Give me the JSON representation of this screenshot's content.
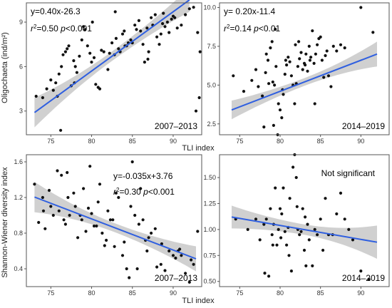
{
  "figure": {
    "ylabel_top": "Oligochaeta (ind/m²)",
    "ylabel_bottom": "Shannon-Wiener diversity index",
    "xlabel_top": "TLI index",
    "xlabel_bottom": "TLI index"
  },
  "colors": {
    "points": "#111111",
    "fit": "#2f5fe0",
    "band": "#c8c8c8",
    "frame": "#555555"
  },
  "chart_data": [
    {
      "type": "scatter",
      "panel": "top-left",
      "period": "2007–2013",
      "annotation_eq": "y=0.40x-26.3",
      "annotation_r2": "r²=0.50 p<0.001",
      "xlim": [
        72,
        93.5
      ],
      "ylim": [
        1.4,
        10.3
      ],
      "xticks": [
        75,
        80,
        85,
        90
      ],
      "yticks": [
        3,
        6,
        9
      ],
      "fit": {
        "slope": 0.4,
        "intercept": -26.3,
        "x_range": [
          73,
          92
        ],
        "band": [
          1.0,
          0.32,
          0.8
        ]
      },
      "x": [
        73.2,
        74,
        74.5,
        75,
        75.3,
        75.8,
        75.6,
        76,
        76.3,
        76.5,
        76.8,
        77,
        77.2,
        77.5,
        77.8,
        78,
        78.2,
        78.5,
        78.8,
        79,
        79.2,
        79.5,
        79.8,
        80,
        80.3,
        80.5,
        80.8,
        81,
        81.2,
        81.5,
        82,
        82.2,
        82.5,
        82.8,
        83,
        83.3,
        83.5,
        83.8,
        84,
        84.3,
        84.5,
        84.8,
        85,
        85.3,
        85.5,
        85.8,
        86,
        86.3,
        86.5,
        86.8,
        87,
        87.3,
        87.5,
        87.8,
        88,
        88.3,
        88.5,
        88.8,
        89,
        89.3,
        89.5,
        89.8,
        90,
        90.5,
        91,
        91.5,
        92,
        92.5,
        93,
        93.3,
        76.2,
        77.9,
        80.1,
        82.9,
        84.1,
        86.9,
        88.7,
        90.2,
        92.8,
        93.2
      ],
      "y": [
        4.0,
        3.9,
        4.5,
        5.1,
        4.4,
        4.0,
        4.9,
        5.5,
        6.0,
        6.8,
        7.0,
        7.2,
        7.4,
        4.7,
        6.4,
        6.0,
        5.6,
        6.7,
        7.8,
        8.7,
        8.5,
        7.4,
        6.9,
        6.3,
        6.6,
        4.8,
        4.6,
        4.5,
        7.1,
        7.0,
        5.8,
        6.9,
        7.6,
        6.8,
        7.9,
        7.2,
        7.0,
        8.2,
        8.4,
        7.4,
        7.6,
        7.8,
        7.6,
        8.8,
        8.5,
        9.1,
        8.4,
        7.5,
        6.3,
        8.6,
        7.0,
        9.3,
        8.8,
        9.5,
        8.0,
        7.5,
        8.2,
        9.6,
        8.7,
        9.0,
        8.3,
        9.2,
        9.4,
        8.6,
        8.8,
        9.5,
        9.9,
        10.0,
        8.3,
        7.0,
        1.7,
        4.9,
        9.0,
        9.7,
        7.4,
        6.5,
        8.9,
        9.3,
        3.0,
        3.9
      ]
    },
    {
      "type": "scatter",
      "panel": "top-right",
      "period": "2014–2019",
      "annotation_eq": "y= 0.20x-11.4",
      "annotation_r2": "r²=0.14 p<0.01",
      "xlim": [
        72.5,
        93.5
      ],
      "ylim": [
        1.8,
        10.3
      ],
      "xticks": [
        75,
        80,
        85,
        90
      ],
      "yticks": [
        2.5,
        5.0,
        7.5,
        10.0
      ],
      "fit": {
        "slope": 0.2,
        "intercept": -11.4,
        "x_range": [
          74,
          92
        ],
        "band": [
          0.6,
          0.25,
          0.8
        ]
      },
      "x": [
        74.2,
        75.5,
        76.5,
        77,
        77.3,
        77.8,
        78,
        78.2,
        78.5,
        78.8,
        79,
        79.1,
        79.3,
        79.5,
        79.7,
        79.8,
        80,
        80.2,
        80.4,
        80.6,
        80.8,
        81,
        81.2,
        81.4,
        81.6,
        81.8,
        82,
        82.2,
        82.4,
        82.6,
        82.8,
        83,
        83.2,
        83.4,
        83.6,
        83.8,
        84,
        84.2,
        84.4,
        84.6,
        84.8,
        85,
        85.2,
        85.4,
        85.6,
        85.8,
        86,
        86.3,
        86.6,
        87,
        87.5,
        88,
        90,
        91.5,
        78.3,
        79.4,
        80.7,
        81.9,
        83.1,
        84.3,
        79.2,
        78.6,
        80.3,
        82.3,
        83.7
      ],
      "y": [
        5.6,
        4.6,
        5.3,
        6.0,
        4.9,
        4.3,
        2.3,
        5.8,
        6.6,
        7.4,
        7.8,
        5.2,
        5.0,
        6.2,
        1.8,
        3.8,
        3.4,
        2.9,
        4.4,
        5.7,
        6.3,
        6.8,
        6.5,
        5.6,
        5.0,
        3.8,
        5.1,
        6.2,
        6.7,
        7.1,
        6.0,
        6.4,
        7.0,
        5.9,
        7.5,
        6.8,
        8.5,
        6.4,
        7.0,
        7.6,
        8.0,
        8.1,
        6.6,
        5.5,
        6.9,
        7.2,
        5.6,
        4.9,
        7.5,
        7.2,
        7.6,
        7.4,
        10.0,
        8.4,
        7.0,
        8.6,
        6.6,
        7.6,
        6.3,
        3.8,
        2.4,
        5.1,
        4.7,
        7.8,
        6.6
      ]
    },
    {
      "type": "scatter",
      "panel": "bottom-left",
      "period": "2007–2013",
      "annotation_eq": "y=-0.035x+3.76",
      "annotation_r2": "r²=0.30 p<0.001",
      "xlim": [
        72,
        93.5
      ],
      "ylim": [
        0.2,
        1.68
      ],
      "xticks": [
        75,
        80,
        85,
        90
      ],
      "yticks": [
        0.4,
        0.8,
        1.2,
        1.6
      ],
      "fit": {
        "slope": -0.035,
        "intercept": 3.76,
        "x_range": [
          73,
          92.8
        ],
        "band": [
          0.17,
          0.05,
          0.14
        ]
      },
      "x": [
        73,
        73.5,
        74,
        74.3,
        74.8,
        75,
        75.3,
        75.8,
        76,
        76.3,
        76.8,
        77,
        77.3,
        77.8,
        78,
        78.3,
        78.8,
        79,
        79.3,
        79.8,
        80,
        80.3,
        80.8,
        81,
        81.3,
        81.8,
        82,
        82.3,
        82.8,
        83,
        83.3,
        83.8,
        84,
        84.3,
        84.8,
        85,
        85.3,
        85.8,
        86,
        86.3,
        86.8,
        87,
        87.3,
        87.8,
        88,
        88.5,
        89,
        89.5,
        90,
        90.3,
        90.6,
        91,
        91.5,
        92,
        92.5,
        93,
        74.1,
        76.6,
        78.6,
        80.6,
        82.6,
        84.6,
        86.6,
        88.6,
        90.8,
        92.2,
        79.6,
        77.1,
        81.6,
        85.6
      ],
      "y": [
        1.35,
        0.92,
        1.2,
        0.85,
        1.28,
        1.1,
        1.0,
        1.5,
        1.05,
        1.45,
        0.9,
        1.48,
        1.0,
        1.25,
        1.1,
        0.75,
        0.95,
        1.3,
        0.82,
        1.55,
        1.02,
        0.88,
        1.15,
        1.35,
        0.8,
        0.72,
        1.05,
        0.95,
        0.65,
        1.25,
        1.2,
        0.55,
        0.7,
        0.4,
        1.1,
        1.6,
        1.0,
        0.9,
        1.3,
        0.95,
        0.6,
        0.75,
        0.8,
        0.85,
        0.42,
        0.45,
        0.38,
        0.6,
        0.55,
        0.52,
        0.6,
        0.55,
        0.35,
        0.25,
        0.45,
        0.82,
        1.05,
        0.95,
        1.0,
        0.88,
        0.95,
        0.3,
        0.72,
        0.68,
        0.62,
        0.5,
        1.08,
        1.2,
        0.66,
        0.4
      ]
    },
    {
      "type": "scatter",
      "panel": "bottom-right",
      "period": "2014–2019",
      "annotation_note": "Not significant",
      "xlim": [
        72.5,
        93.5
      ],
      "ylim": [
        0.45,
        1.72
      ],
      "xticks": [
        75,
        80,
        85,
        90
      ],
      "yticks": [
        0.5,
        0.75,
        1.0,
        1.25,
        1.5
      ],
      "fit": {
        "slope": -0.01346,
        "intercept": 2.116,
        "x_range": [
          74,
          92
        ],
        "band": [
          0.11,
          0.05,
          0.16
        ]
      },
      "x": [
        74.5,
        76,
        77,
        77.5,
        78,
        78.3,
        78.6,
        78.8,
        79,
        79.2,
        79.4,
        79.6,
        79.8,
        80,
        80.2,
        80.4,
        80.6,
        80.8,
        81,
        81.2,
        81.4,
        81.6,
        81.8,
        82,
        82.2,
        82.4,
        82.6,
        82.8,
        83,
        83.2,
        83.4,
        83.6,
        84,
        84.3,
        84.6,
        85,
        85.3,
        85.6,
        86,
        86.5,
        87,
        87.5,
        88,
        88.5,
        89,
        90,
        91,
        79.1,
        80.1,
        81.1,
        82.1,
        83.1,
        78.1
      ],
      "y": [
        1.1,
        1.0,
        1.1,
        0.9,
        1.05,
        1.1,
        0.55,
        1.2,
        0.95,
        1.05,
        1.4,
        0.85,
        1.0,
        1.2,
        1.15,
        1.4,
        0.98,
        0.85,
        1.02,
        1.3,
        0.6,
        1.6,
        1.72,
        1.5,
        1.0,
        0.95,
        0.98,
        1.2,
        0.8,
        0.65,
        1.05,
        0.9,
        0.65,
        1.0,
        0.95,
        1.1,
        0.8,
        1.3,
        0.95,
        0.95,
        1.15,
        1.35,
        1.1,
        1.0,
        0.9,
        0.6,
        0.52,
        0.85,
        0.92,
        0.75,
        1.22,
        1.12,
        0.58
      ]
    }
  ]
}
